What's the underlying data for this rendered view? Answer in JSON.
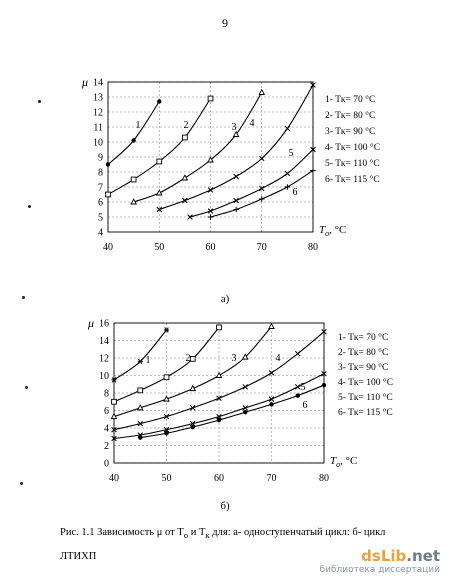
{
  "page_number": "9",
  "caption": {
    "line1": "Рис. 1.1 Зависимость μ от T",
    "sub_o": "o",
    "mid": " и T",
    "sub_k": "к",
    "rest": " для: а- одноступенчатый цикл: б- цикл",
    "line2": "ЛТИХП"
  },
  "watermark": {
    "brand_left": "dsLib",
    "brand_right": ".net",
    "subtitle": "библиотека диссертаций"
  },
  "chart_data": [
    {
      "panel": "а)",
      "type": "line",
      "xlabel": "T",
      "xlabel_sub": "o",
      "xunit": ", °C",
      "ylabel": "μ",
      "xlim": [
        40,
        80
      ],
      "ylim": [
        4,
        14
      ],
      "xticks": [
        40,
        50,
        60,
        70,
        80
      ],
      "yticks": [
        4,
        5,
        6,
        7,
        8,
        9,
        10,
        11,
        12,
        13,
        14
      ],
      "grid": "dashed",
      "legend_position": "right",
      "series": [
        {
          "name": "1- Tк= 70 °C",
          "marker": "dot",
          "label": "1",
          "points": [
            [
              40,
              8.5
            ],
            [
              45,
              10.1
            ],
            [
              50,
              12.7
            ]
          ]
        },
        {
          "name": "2- Tк= 80 °C",
          "marker": "square",
          "label": "2",
          "points": [
            [
              40,
              6.5
            ],
            [
              45,
              7.5
            ],
            [
              50,
              8.7
            ],
            [
              55,
              10.3
            ],
            [
              60,
              12.9
            ]
          ]
        },
        {
          "name": "3- Tк= 90 °C",
          "marker": "triangle",
          "label": "3",
          "points": [
            [
              45,
              6.0
            ],
            [
              50,
              6.6
            ],
            [
              55,
              7.6
            ],
            [
              60,
              8.8
            ],
            [
              65,
              10.5
            ],
            [
              70,
              13.3
            ]
          ]
        },
        {
          "name": "4- Tк= 100 °C",
          "marker": "cross",
          "label": "4",
          "points": [
            [
              50,
              5.5
            ],
            [
              55,
              6.1
            ],
            [
              60,
              6.8
            ],
            [
              65,
              7.7
            ],
            [
              70,
              8.9
            ],
            [
              75,
              10.9
            ],
            [
              80,
              13.8
            ]
          ]
        },
        {
          "name": "5- Tк= 110 °C",
          "marker": "cross",
          "label": "5",
          "points": [
            [
              56,
              5.0
            ],
            [
              60,
              5.4
            ],
            [
              65,
              6.1
            ],
            [
              70,
              6.9
            ],
            [
              75,
              7.9
            ],
            [
              80,
              9.5
            ]
          ]
        },
        {
          "name": "6- Tк= 115 °C",
          "marker": "plus",
          "label": "6",
          "points": [
            [
              60,
              5.0
            ],
            [
              65,
              5.5
            ],
            [
              70,
              6.2
            ],
            [
              75,
              7.0
            ],
            [
              80,
              8.1
            ]
          ]
        }
      ]
    },
    {
      "panel": "б)",
      "type": "line",
      "xlabel": "T",
      "xlabel_sub": "o",
      "xunit": ", °C",
      "ylabel": "μ",
      "xlim": [
        40,
        80
      ],
      "ylim": [
        0,
        16
      ],
      "xticks": [
        40,
        50,
        60,
        70,
        80
      ],
      "yticks": [
        0,
        2,
        4,
        6,
        8,
        10,
        12,
        14,
        16
      ],
      "grid": "dashed",
      "legend_position": "right",
      "series": [
        {
          "name": "1- Tк= 70 °C",
          "marker": "star",
          "label": "1",
          "points": [
            [
              40,
              9.5
            ],
            [
              45,
              11.6
            ],
            [
              50,
              15.2
            ]
          ]
        },
        {
          "name": "2- Tк= 80 °C",
          "marker": "square",
          "label": "2",
          "points": [
            [
              40,
              7.0
            ],
            [
              45,
              8.3
            ],
            [
              50,
              9.8
            ],
            [
              55,
              11.9
            ],
            [
              60,
              15.5
            ]
          ]
        },
        {
          "name": "3- Tк= 90 °C",
          "marker": "triangle",
          "label": "3",
          "points": [
            [
              40,
              5.3
            ],
            [
              45,
              6.3
            ],
            [
              50,
              7.3
            ],
            [
              55,
              8.5
            ],
            [
              60,
              10.0
            ],
            [
              65,
              12.1
            ],
            [
              70,
              15.6
            ]
          ]
        },
        {
          "name": "4- Tк= 100 °C",
          "marker": "cross",
          "label": "4",
          "points": [
            [
              40,
              3.8
            ],
            [
              45,
              4.5
            ],
            [
              50,
              5.3
            ],
            [
              55,
              6.3
            ],
            [
              60,
              7.4
            ],
            [
              65,
              8.7
            ],
            [
              70,
              10.3
            ],
            [
              75,
              12.5
            ],
            [
              80,
              15.0
            ]
          ]
        },
        {
          "name": "5- Tк= 110 °C",
          "marker": "cross",
          "label": "5",
          "points": [
            [
              40,
              2.8
            ],
            [
              45,
              3.2
            ],
            [
              50,
              3.8
            ],
            [
              55,
              4.5
            ],
            [
              60,
              5.3
            ],
            [
              65,
              6.3
            ],
            [
              70,
              7.3
            ],
            [
              75,
              8.7
            ],
            [
              80,
              10.2
            ]
          ]
        },
        {
          "name": "6- Tк= 115 °C",
          "marker": "dot",
          "label": "6",
          "points": [
            [
              45,
              2.9
            ],
            [
              50,
              3.4
            ],
            [
              55,
              4.1
            ],
            [
              60,
              4.9
            ],
            [
              65,
              5.8
            ],
            [
              70,
              6.7
            ],
            [
              75,
              7.7
            ],
            [
              80,
              8.9
            ]
          ]
        }
      ]
    }
  ]
}
